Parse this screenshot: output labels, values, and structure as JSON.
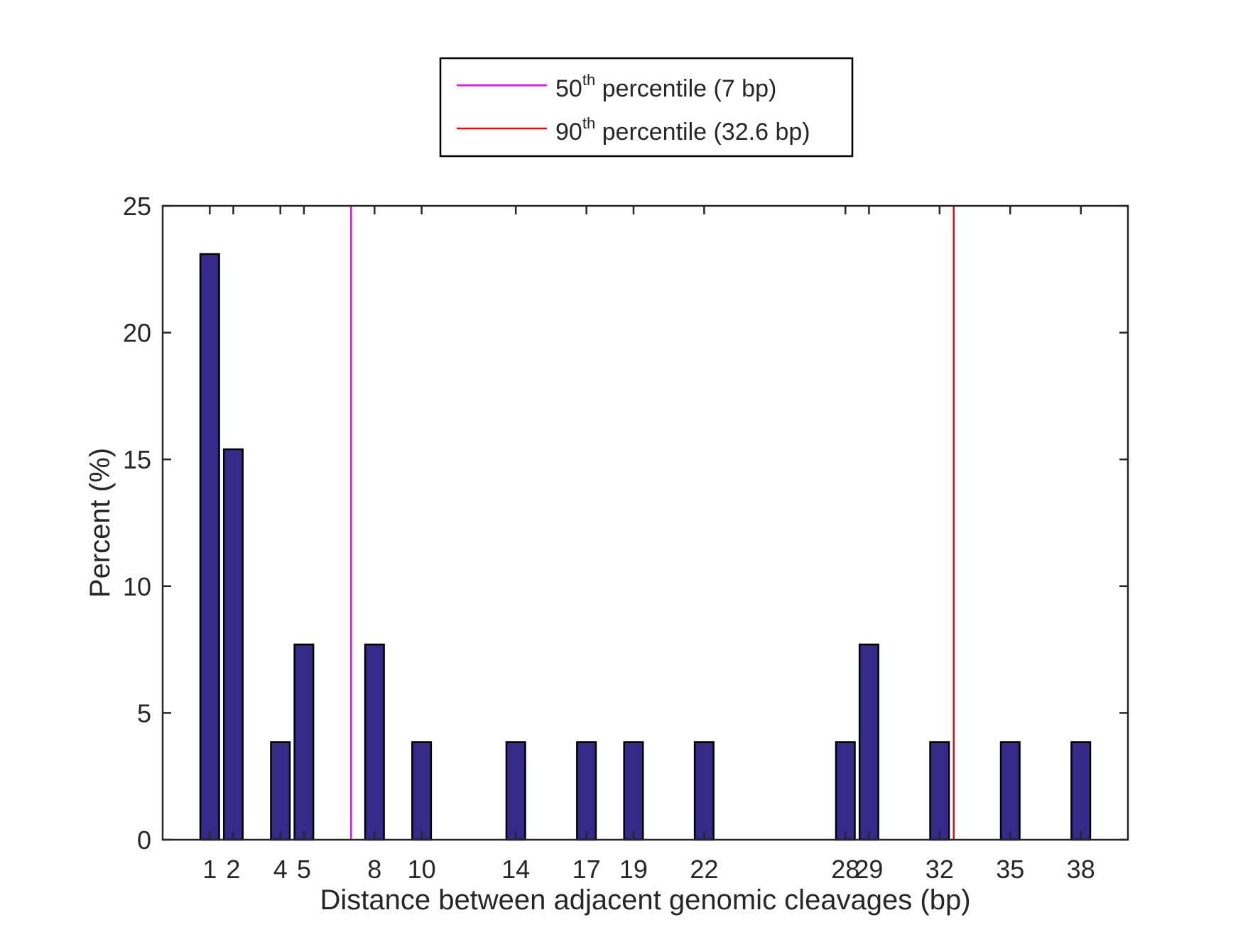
{
  "chart_data": {
    "type": "bar",
    "xlabel": "Distance between adjacent genomic cleavages (bp)",
    "ylabel": "Percent (%)",
    "xlim": [
      -1,
      40
    ],
    "ylim": [
      0,
      25
    ],
    "yticks": [
      0,
      5,
      10,
      15,
      20,
      25
    ],
    "xticks": [
      1,
      2,
      4,
      5,
      8,
      10,
      14,
      17,
      19,
      22,
      28,
      29,
      32,
      35,
      38
    ],
    "x": [
      1,
      2,
      4,
      5,
      8,
      10,
      14,
      17,
      19,
      22,
      28,
      29,
      32,
      35,
      38
    ],
    "values": [
      23.1,
      15.4,
      3.85,
      7.7,
      7.7,
      3.85,
      3.85,
      3.85,
      3.85,
      3.85,
      3.85,
      7.7,
      3.85,
      3.85,
      3.85
    ],
    "bar_color": "#352a87",
    "grid": false,
    "legend_placement": "top-center",
    "reference_lines": [
      {
        "x": 7,
        "color": "#ff00ff",
        "label_base": "50",
        "label_sup": "th",
        "label_rest": " percentile (7 bp)"
      },
      {
        "x": 32.6,
        "color": "#ff0000",
        "label_base": "90",
        "label_sup": "th",
        "label_rest": " percentile (32.6 bp)"
      }
    ]
  }
}
